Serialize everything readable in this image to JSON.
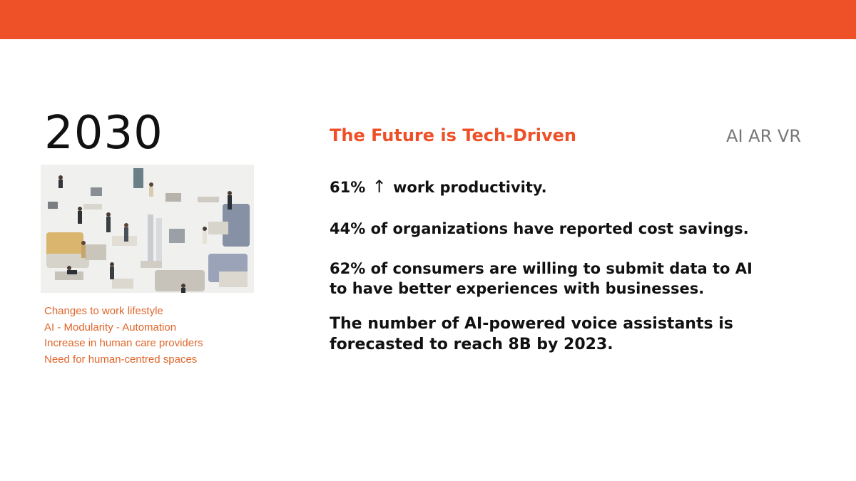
{
  "slide": {
    "year": "2030",
    "heading": "The Future is Tech-Driven",
    "tags": "AI AR VR",
    "notes": [
      "Changes to work lifestyle",
      "AI - Modularity - Automation",
      "Increase in human care providers",
      "Need for human-centred spaces"
    ],
    "stats": {
      "productivity_value": "61%",
      "productivity_arrow": "↑",
      "productivity_text": "work productivity.",
      "cost_savings": "44% of organizations have reported cost savings.",
      "consumers_line1": "62% of consumers are willing to submit data to AI",
      "consumers_line2": "to have better experiences with businesses.",
      "voice_line1": "The number of AI-powered voice assistants is",
      "voice_line2": "forecasted to reach 8B by 2023."
    }
  },
  "colors": {
    "accent": "#ee5027",
    "note_text": "#e0662b",
    "tag_text": "#777777",
    "body_text": "#111111"
  }
}
